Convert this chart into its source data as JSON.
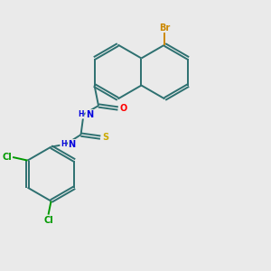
{
  "bg_color": "#eaeaea",
  "bond_color": "#2d7070",
  "atom_colors": {
    "Br": "#cc8800",
    "O": "#ff0000",
    "N": "#0000dd",
    "S": "#ccaa00",
    "Cl": "#009900"
  },
  "lw": 1.4,
  "dbo": 0.05,
  "fs": 6.5
}
